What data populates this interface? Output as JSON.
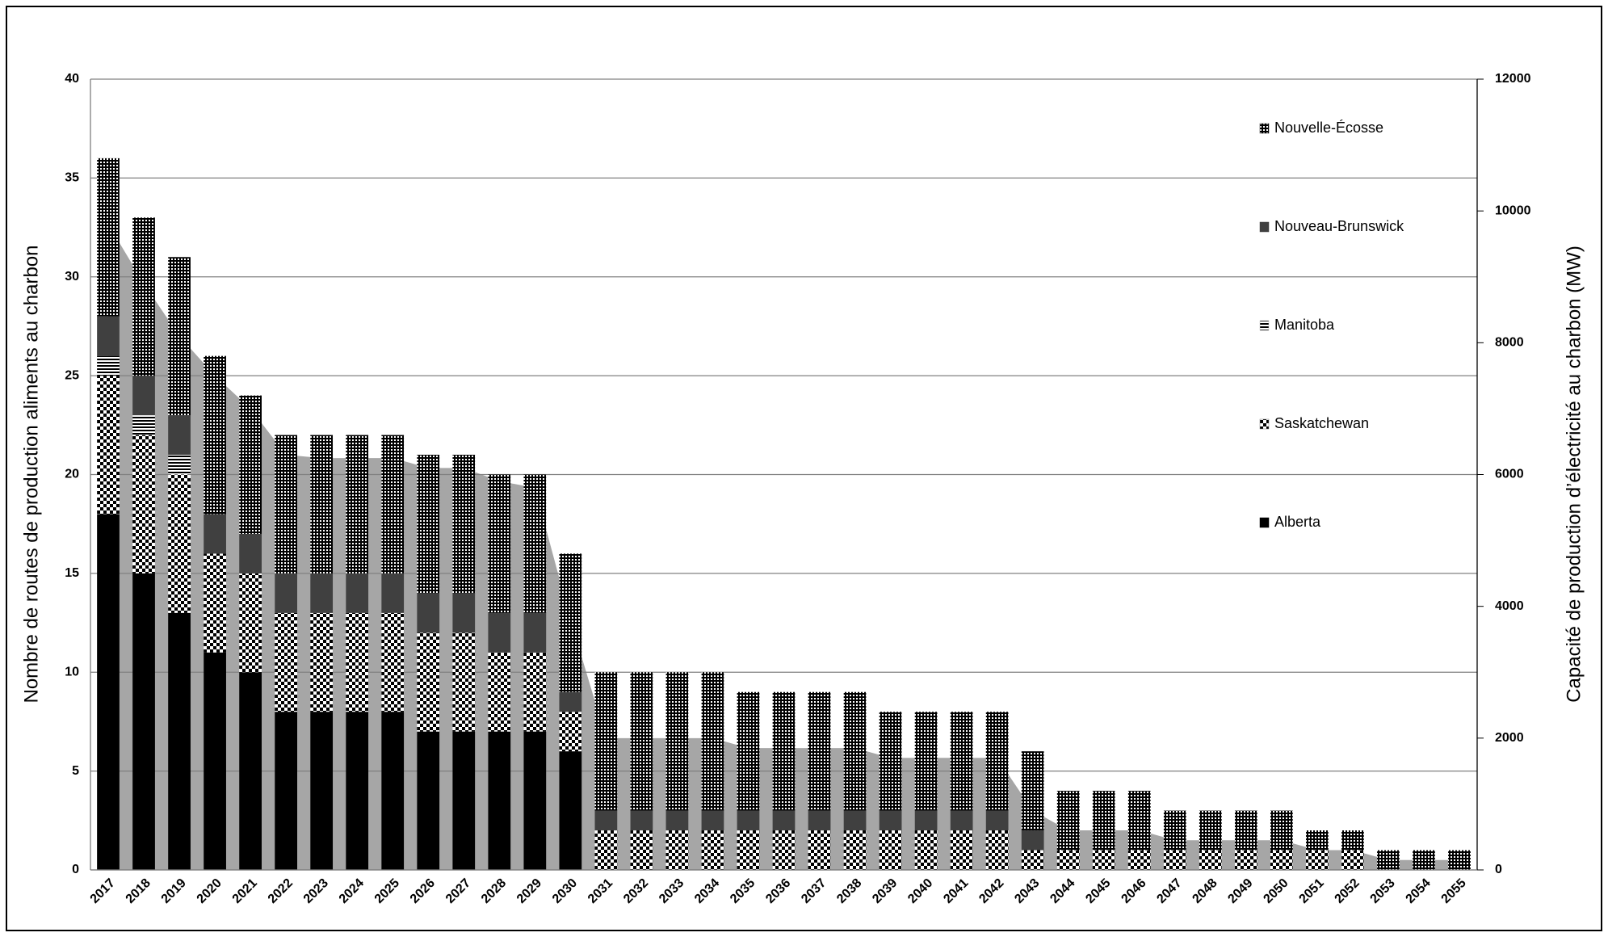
{
  "chart_data": {
    "type": "bar",
    "stacked": true,
    "ylabel": "Nombre de routes de production aliments au charbon",
    "y2label": "Capacité de production d’électricité au charbon (MW)",
    "categories": [
      "2017",
      "2018",
      "2019",
      "2020",
      "2021",
      "2022",
      "2023",
      "2024",
      "2025",
      "2026",
      "2027",
      "2028",
      "2029",
      "2030",
      "2031",
      "2032",
      "2033",
      "2034",
      "2035",
      "2036",
      "2037",
      "2038",
      "2039",
      "2040",
      "2041",
      "2042",
      "2043",
      "2044",
      "2045",
      "2046",
      "2047",
      "2048",
      "2049",
      "2050",
      "2051",
      "2052",
      "2053",
      "2054",
      "2055"
    ],
    "series": [
      {
        "name": "Alberta",
        "color": "#000000",
        "values": [
          18,
          15,
          13,
          11,
          10,
          8,
          8,
          8,
          8,
          7,
          7,
          7,
          7,
          6,
          0,
          0,
          0,
          0,
          0,
          0,
          0,
          0,
          0,
          0,
          0,
          0,
          0,
          0,
          0,
          0,
          0,
          0,
          0,
          0,
          0,
          0,
          0,
          0,
          0
        ]
      },
      {
        "name": "Saskatchewan",
        "color": "#7f7f7f",
        "values": [
          7,
          7,
          7,
          5,
          5,
          5,
          5,
          5,
          5,
          5,
          5,
          4,
          4,
          2,
          2,
          2,
          2,
          2,
          2,
          2,
          2,
          2,
          2,
          2,
          2,
          2,
          1,
          1,
          1,
          1,
          1,
          1,
          1,
          1,
          1,
          1,
          0,
          0,
          0
        ]
      },
      {
        "name": "Manitoba",
        "color": "#bfbfbf",
        "values": [
          1,
          1,
          1,
          0,
          0,
          0,
          0,
          0,
          0,
          0,
          0,
          0,
          0,
          0,
          0,
          0,
          0,
          0,
          0,
          0,
          0,
          0,
          0,
          0,
          0,
          0,
          0,
          0,
          0,
          0,
          0,
          0,
          0,
          0,
          0,
          0,
          0,
          0,
          0
        ]
      },
      {
        "name": "Nouveau-Brunswick",
        "color": "#404040",
        "values": [
          2,
          2,
          2,
          2,
          2,
          2,
          2,
          2,
          2,
          2,
          2,
          2,
          2,
          1,
          1,
          1,
          1,
          1,
          1,
          1,
          1,
          1,
          1,
          1,
          1,
          1,
          1,
          0,
          0,
          0,
          0,
          0,
          0,
          0,
          0,
          0,
          0,
          0,
          0
        ]
      },
      {
        "name": "Nouvelle-Écosse",
        "color": "#1a1a1a",
        "values": [
          8,
          8,
          8,
          8,
          7,
          7,
          7,
          7,
          7,
          7,
          7,
          7,
          7,
          7,
          7,
          7,
          7,
          7,
          6,
          6,
          6,
          6,
          5,
          5,
          5,
          5,
          4,
          3,
          3,
          3,
          2,
          2,
          2,
          2,
          1,
          1,
          1,
          1,
          1
        ]
      }
    ],
    "area": {
      "type": "area",
      "axis": "y2",
      "color": "#a6a6a6",
      "values": [
        9800,
        8900,
        8100,
        7500,
        7000,
        6300,
        6250,
        6250,
        6250,
        6100,
        6100,
        5900,
        5800,
        3800,
        2000,
        2000,
        2000,
        2000,
        1850,
        1850,
        1850,
        1850,
        1700,
        1700,
        1700,
        1700,
        900,
        600,
        600,
        600,
        450,
        450,
        450,
        450,
        300,
        300,
        150,
        150,
        150
      ]
    },
    "ylim": [
      0,
      40
    ],
    "yticks": [
      0,
      5,
      10,
      15,
      20,
      25,
      30,
      35,
      40
    ],
    "y2lim": [
      0,
      12000
    ],
    "y2ticks": [
      0,
      2000,
      4000,
      6000,
      8000,
      10000,
      12000
    ],
    "grid": true,
    "legend": "upper right"
  }
}
